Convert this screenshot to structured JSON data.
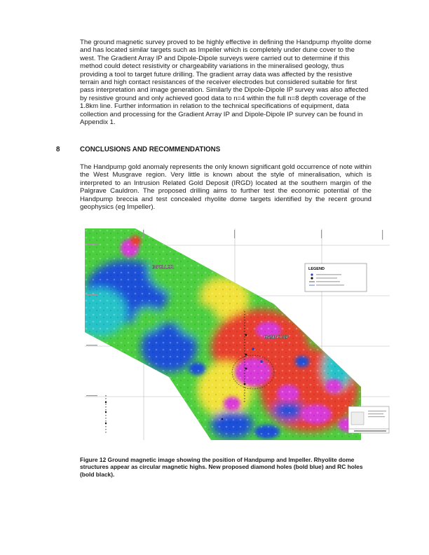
{
  "paragraphs": {
    "survey": "The ground magnetic survey proved to be highly effective in defining the Handpump rhyolite dome and has located similar targets such as Impeller which is completely under dune cover to the west. The Gradient Array IP and Dipole-Dipole surveys were carried out to determine if this method could detect resistivity or chargeability variations in the mineralised geology, thus providing a tool to target future drilling. The gradient array data was affected by the resistive terrain and high contact resistances of the receiver electrodes but considered suitable for first pass interpretation and image generation. Similarly the Dipole-Dipole IP survey was also affected by resistive ground and only achieved good data to n=4 within the full n=8 depth coverage of the 1.8km line. Further information in relation to the technical specifications of equipment, data collection and processing for the Gradient Array IP and Dipole-Dipole IP survey can be found in Appendix 1.",
    "conclusions": "The Handpump gold anomaly represents the only known significant gold occurrence of note within the West Musgrave region. Very little is known about the style of mineralisation, which is interpreted to an Intrusion Related Gold Deposit (IRGD) located at the southern margin of the Palgrave Cauldron. The proposed drilling aims to further test the economic potential of the Handpump breccia and test concealed rhyolite dome targets identified by the recent ground geophysics (eg Impeller)."
  },
  "section": {
    "number": "8",
    "title": "CONCLUSIONS AND RECOMMENDATIONS"
  },
  "figure": {
    "labels": {
      "impeller": "IMPELLER",
      "handpump": "HANDPUMP"
    },
    "legend": {
      "title": "LEGEND"
    },
    "colors": {
      "low": "#1f4fd8",
      "mid_low": "#27c4c9",
      "mid": "#4ccf3f",
      "mid_high": "#f2e23a",
      "high": "#e8402f",
      "peak": "#d83ad8",
      "proposed_diamond": "#1f3fc4",
      "proposed_rc": "#111111"
    }
  },
  "caption": "Figure 12 Ground magnetic image showing the position of Handpump and Impeller. Rhyolite dome structures appear as circular magnetic highs. New proposed diamond holes (bold blue) and RC holes (bold black)."
}
